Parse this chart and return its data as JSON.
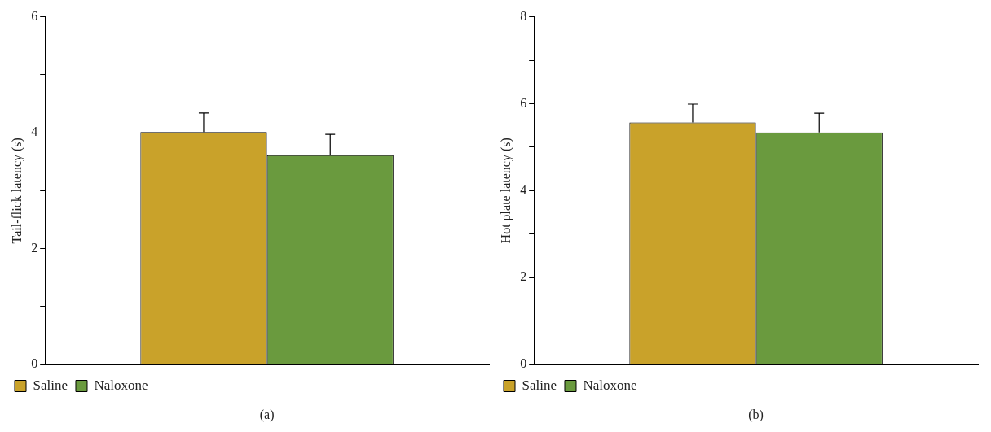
{
  "chart_data": [
    {
      "type": "bar",
      "categories": [
        null
      ],
      "ylabel": "Tail-flick latency (s)",
      "ylim": [
        0,
        6
      ],
      "yticks": [
        0,
        {
          "value": 1,
          "label": null
        },
        2,
        {
          "value": 3,
          "label": null
        },
        4,
        {
          "value": 5,
          "label": null
        },
        6
      ],
      "grid": false,
      "legend": "bottom left",
      "annotations": [
        "(a)"
      ],
      "series": [
        {
          "name": "Saline",
          "color": "#c9a22a",
          "values": [
            4.01
          ],
          "errors": [
            [
              4.01,
              4.34
            ]
          ]
        },
        {
          "name": "Naloxone",
          "color": "#6a9a3e",
          "values": [
            3.61
          ],
          "errors": [
            [
              3.61,
              3.97
            ]
          ]
        }
      ]
    },
    {
      "type": "bar",
      "categories": [
        null
      ],
      "ylabel": "Hot plate latency (s)",
      "ylim": [
        0,
        8
      ],
      "yticks": [
        0,
        {
          "value": 1,
          "label": null
        },
        2,
        {
          "value": 3,
          "label": null
        },
        4,
        {
          "value": 5,
          "label": null
        },
        6,
        {
          "value": 7,
          "label": null
        },
        8
      ],
      "grid": false,
      "legend": "bottom left",
      "annotations": [
        "(b)"
      ],
      "series": [
        {
          "name": "Saline",
          "color": "#c9a22a",
          "values": [
            5.57
          ],
          "errors": [
            [
              5.57,
              5.99
            ]
          ]
        },
        {
          "name": "Naloxone",
          "color": "#6a9a3e",
          "values": [
            5.34
          ],
          "errors": [
            [
              5.34,
              5.78
            ]
          ]
        }
      ]
    }
  ]
}
